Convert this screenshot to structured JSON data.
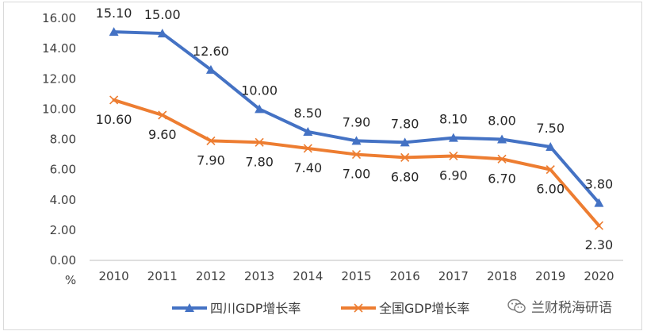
{
  "chart_data": {
    "type": "line",
    "categories": [
      "2010",
      "2011",
      "2012",
      "2013",
      "2014",
      "2015",
      "2016",
      "2017",
      "2018",
      "2019",
      "2020"
    ],
    "series": [
      {
        "name": "四川GDP增长率",
        "values": [
          15.1,
          15.0,
          12.6,
          10.0,
          8.5,
          7.9,
          7.8,
          8.1,
          8.0,
          7.5,
          3.8
        ],
        "color": "#4472c4",
        "marker": "triangle"
      },
      {
        "name": "全国GDP增长率",
        "values": [
          10.6,
          9.6,
          7.9,
          7.8,
          7.4,
          7.0,
          6.8,
          6.9,
          6.7,
          6.0,
          2.3
        ],
        "color": "#ed7d31",
        "marker": "x"
      }
    ],
    "ylim": [
      0,
      16
    ],
    "yticks": [
      "0.00",
      "2.00",
      "4.00",
      "6.00",
      "8.00",
      "10.00",
      "12.00",
      "14.00",
      "16.00"
    ],
    "ylabel": "%",
    "grid": false,
    "legend": "bottom"
  },
  "watermark": {
    "text": "兰财税海研语",
    "icon": "wechat-icon"
  }
}
